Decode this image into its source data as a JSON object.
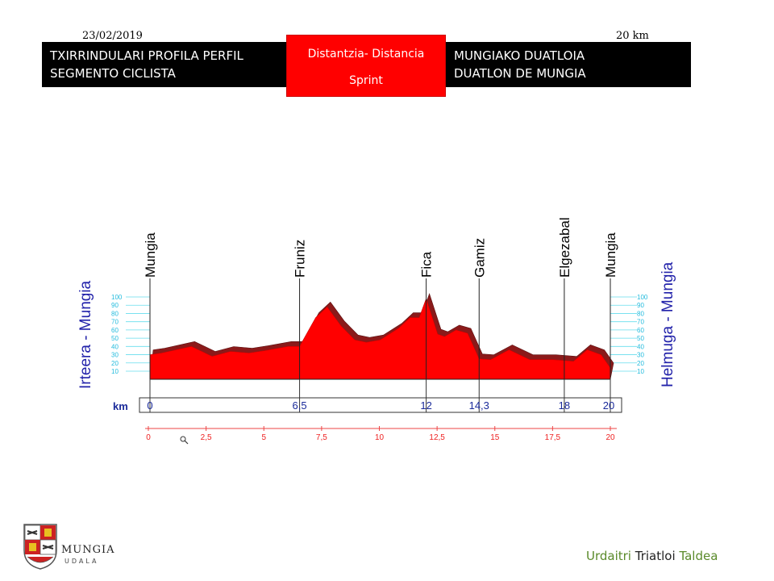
{
  "header": {
    "date": "23/02/2019",
    "distance": "20 km",
    "left_box": {
      "line1": "TXIRRINDULARI PROFILA PERFIL",
      "line2": "SEGMENTO CICLISTA"
    },
    "center_box": {
      "line1": "Distantzia- Distancia",
      "line2": "Sprint"
    },
    "right_box": {
      "line1": "MUNGIAKO DUATLOIA",
      "line2": "DUATLON DE MUNGIA"
    }
  },
  "chart_data": {
    "type": "area",
    "title": "",
    "left_axis_label": "Irteera - Mungia",
    "right_axis_label": "Helmuga - Mungia",
    "xlabel": "km",
    "xlim": [
      0,
      20
    ],
    "ylim": [
      0,
      110
    ],
    "y_ticks": [
      10,
      20,
      30,
      40,
      50,
      60,
      70,
      80,
      90,
      100
    ],
    "waypoints": [
      {
        "name": "Mungia",
        "km": 0,
        "km_label": "0"
      },
      {
        "name": "Fruniz",
        "km": 6.5,
        "km_label": "6,5"
      },
      {
        "name": "Fica",
        "km": 12,
        "km_label": "12"
      },
      {
        "name": "Gamiz",
        "km": 14.3,
        "km_label": "14,3"
      },
      {
        "name": "Elgezabal",
        "km": 18,
        "km_label": "18"
      },
      {
        "name": "Mungia",
        "km": 20,
        "km_label": "20"
      }
    ],
    "scale_ticks": [
      {
        "km": 0,
        "label": "0"
      },
      {
        "km": 2.5,
        "label": "2,5"
      },
      {
        "km": 5,
        "label": "5"
      },
      {
        "km": 7.5,
        "label": "7,5"
      },
      {
        "km": 10,
        "label": "10"
      },
      {
        "km": 12.5,
        "label": "12,5"
      },
      {
        "km": 15,
        "label": "15"
      },
      {
        "km": 17.5,
        "label": "17,5"
      },
      {
        "km": 20,
        "label": "20"
      }
    ],
    "profile": {
      "km": [
        0,
        0.5,
        1.8,
        2.7,
        3.5,
        4.3,
        5.0,
        6.0,
        6.5,
        7.2,
        7.7,
        8.3,
        8.9,
        9.4,
        10.0,
        10.4,
        10.8,
        11.3,
        11.7,
        12.0,
        12.5,
        12.8,
        13.3,
        13.8,
        14.3,
        14.8,
        15.6,
        16.5,
        17.5,
        18.4,
        19.0,
        19.6,
        20.0
      ],
      "elevation": [
        30,
        32,
        40,
        28,
        34,
        32,
        35,
        40,
        40,
        75,
        88,
        65,
        48,
        45,
        48,
        55,
        62,
        75,
        75,
        98,
        55,
        52,
        60,
        56,
        25,
        24,
        36,
        24,
        24,
        22,
        36,
        30,
        14
      ]
    }
  },
  "footer": {
    "logo_name": "MUNGIA",
    "logo_sub": "UDALA",
    "credit_part1": "Urdaitri",
    "credit_part2": "Triatloi",
    "credit_part3": "Taldea",
    "colors": {
      "green": "#5a8a2a",
      "dark": "#222222",
      "profile_red": "#ff0000",
      "profile_dark": "#8b1a1a",
      "tick_cyan": "#33ccee"
    }
  }
}
